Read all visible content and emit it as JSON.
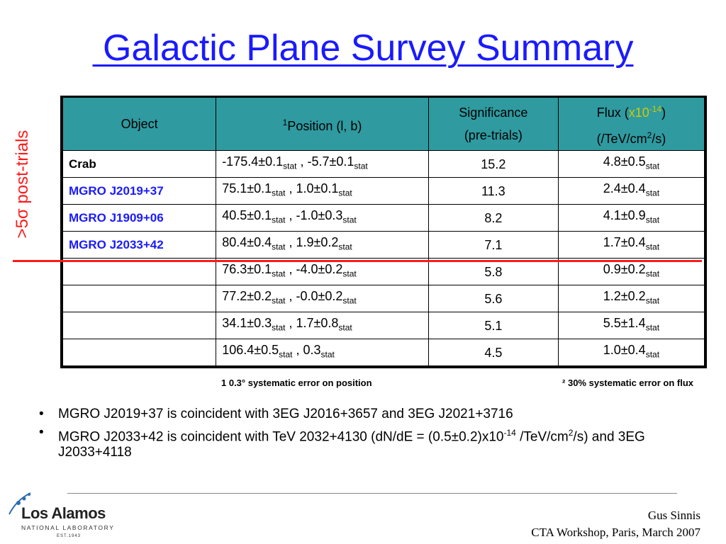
{
  "title": " Galactic Plane Survey Summary",
  "side_label": ">5σ post-trials",
  "table": {
    "headers": {
      "object": "Object",
      "position_sup": "1",
      "position": "Position (l, b)",
      "significance_line1": "Significance",
      "significance_line2": "(pre-trials)",
      "flux_prefix": "Flux (",
      "flux_mult": "x10",
      "flux_mult_exp": "-14",
      "flux_suffix": ")",
      "flux_units_a": "(/TeV/cm",
      "flux_units_exp": "2",
      "flux_units_b": "/s)"
    },
    "rows": [
      {
        "object": "Crab",
        "color": "#000000",
        "position": "-175.4±0.1",
        "position_sub": "stat",
        "position_tail": " , -5.7±0.1",
        "position_tail_sub": "stat",
        "significance": "15.2",
        "flux": "4.8±0.5",
        "flux_sub": "stat"
      },
      {
        "object": "MGRO J2019+37",
        "color": "#1a1aff",
        "position": "  75.1±0.1",
        "position_sub": "stat",
        "position_tail": " , 1.0±0.1",
        "position_tail_sub": "stat",
        "significance": "11.3",
        "flux": "2.4±0.4",
        "flux_sub": "stat"
      },
      {
        "object": "MGRO J1909+06",
        "color": "#1a1aff",
        "position": "  40.5±0.1",
        "position_sub": "stat",
        "position_tail": " , -1.0±0.3",
        "position_tail_sub": "stat",
        "significance": "8.2",
        "flux": "4.1±0.9",
        "flux_sub": "stat"
      },
      {
        "object": "MGRO J2033+42",
        "color": "#1a1aff",
        "position": "  80.4±0.4",
        "position_sub": "stat",
        "position_tail": " , 1.9±0.2",
        "position_tail_sub": "stat",
        "significance": "7.1",
        "flux": "1.7±0.4",
        "flux_sub": "stat"
      },
      {
        "object": "",
        "color": "#000000",
        "position": "  76.3±0.1",
        "position_sub": "stat",
        "position_tail": " , -4.0±0.2",
        "position_tail_sub": "stat",
        "significance": "5.8",
        "flux": "0.9±0.2",
        "flux_sub": "stat"
      },
      {
        "object": "",
        "color": "#000000",
        "position": "  77.2±0.2",
        "position_sub": "stat",
        "position_tail": " , -0.0±0.2",
        "position_tail_sub": "stat",
        "significance": "5.6",
        "flux": "1.2±0.2",
        "flux_sub": "stat"
      },
      {
        "object": "",
        "color": "#000000",
        "position": "  34.1±0.3",
        "position_sub": "stat",
        "position_tail": " , 1.7±0.8",
        "position_tail_sub": "stat",
        "significance": "5.1",
        "flux": "5.5±1.4",
        "flux_sub": "stat"
      },
      {
        "object": "",
        "color": "#000000",
        "position": "106.4±0.5",
        "position_sub": "stat",
        "position_tail": " , 0.3",
        "position_tail_sub": "stat",
        "significance": "4.5",
        "flux": "1.0±0.4",
        "flux_sub": "stat"
      }
    ]
  },
  "footnote_left": "1 0.3° systematic error on position",
  "footnote_right": "² 30% systematic error on flux",
  "bullets": [
    {
      "text": "MGRO J2019+37 is coincident with 3EG J2016+3657 and 3EG J2021+3716"
    },
    {
      "text_a": "MGRO J2033+42 is coincident with TeV 2032+4130 (dN/dE = (0.5±0.2)x10",
      "exp1": "-14",
      "text_b": " /TeV/cm",
      "exp2": "2",
      "text_c": "/s) and 3EG J2033+4118"
    }
  ],
  "footer_line1": "Gus Sinnis",
  "footer_line2": "CTA Workshop, Paris, March 2007",
  "logo": {
    "name": "Los Alamos",
    "sub": "NATIONAL LABORATORY",
    "est": "EST.1943"
  }
}
